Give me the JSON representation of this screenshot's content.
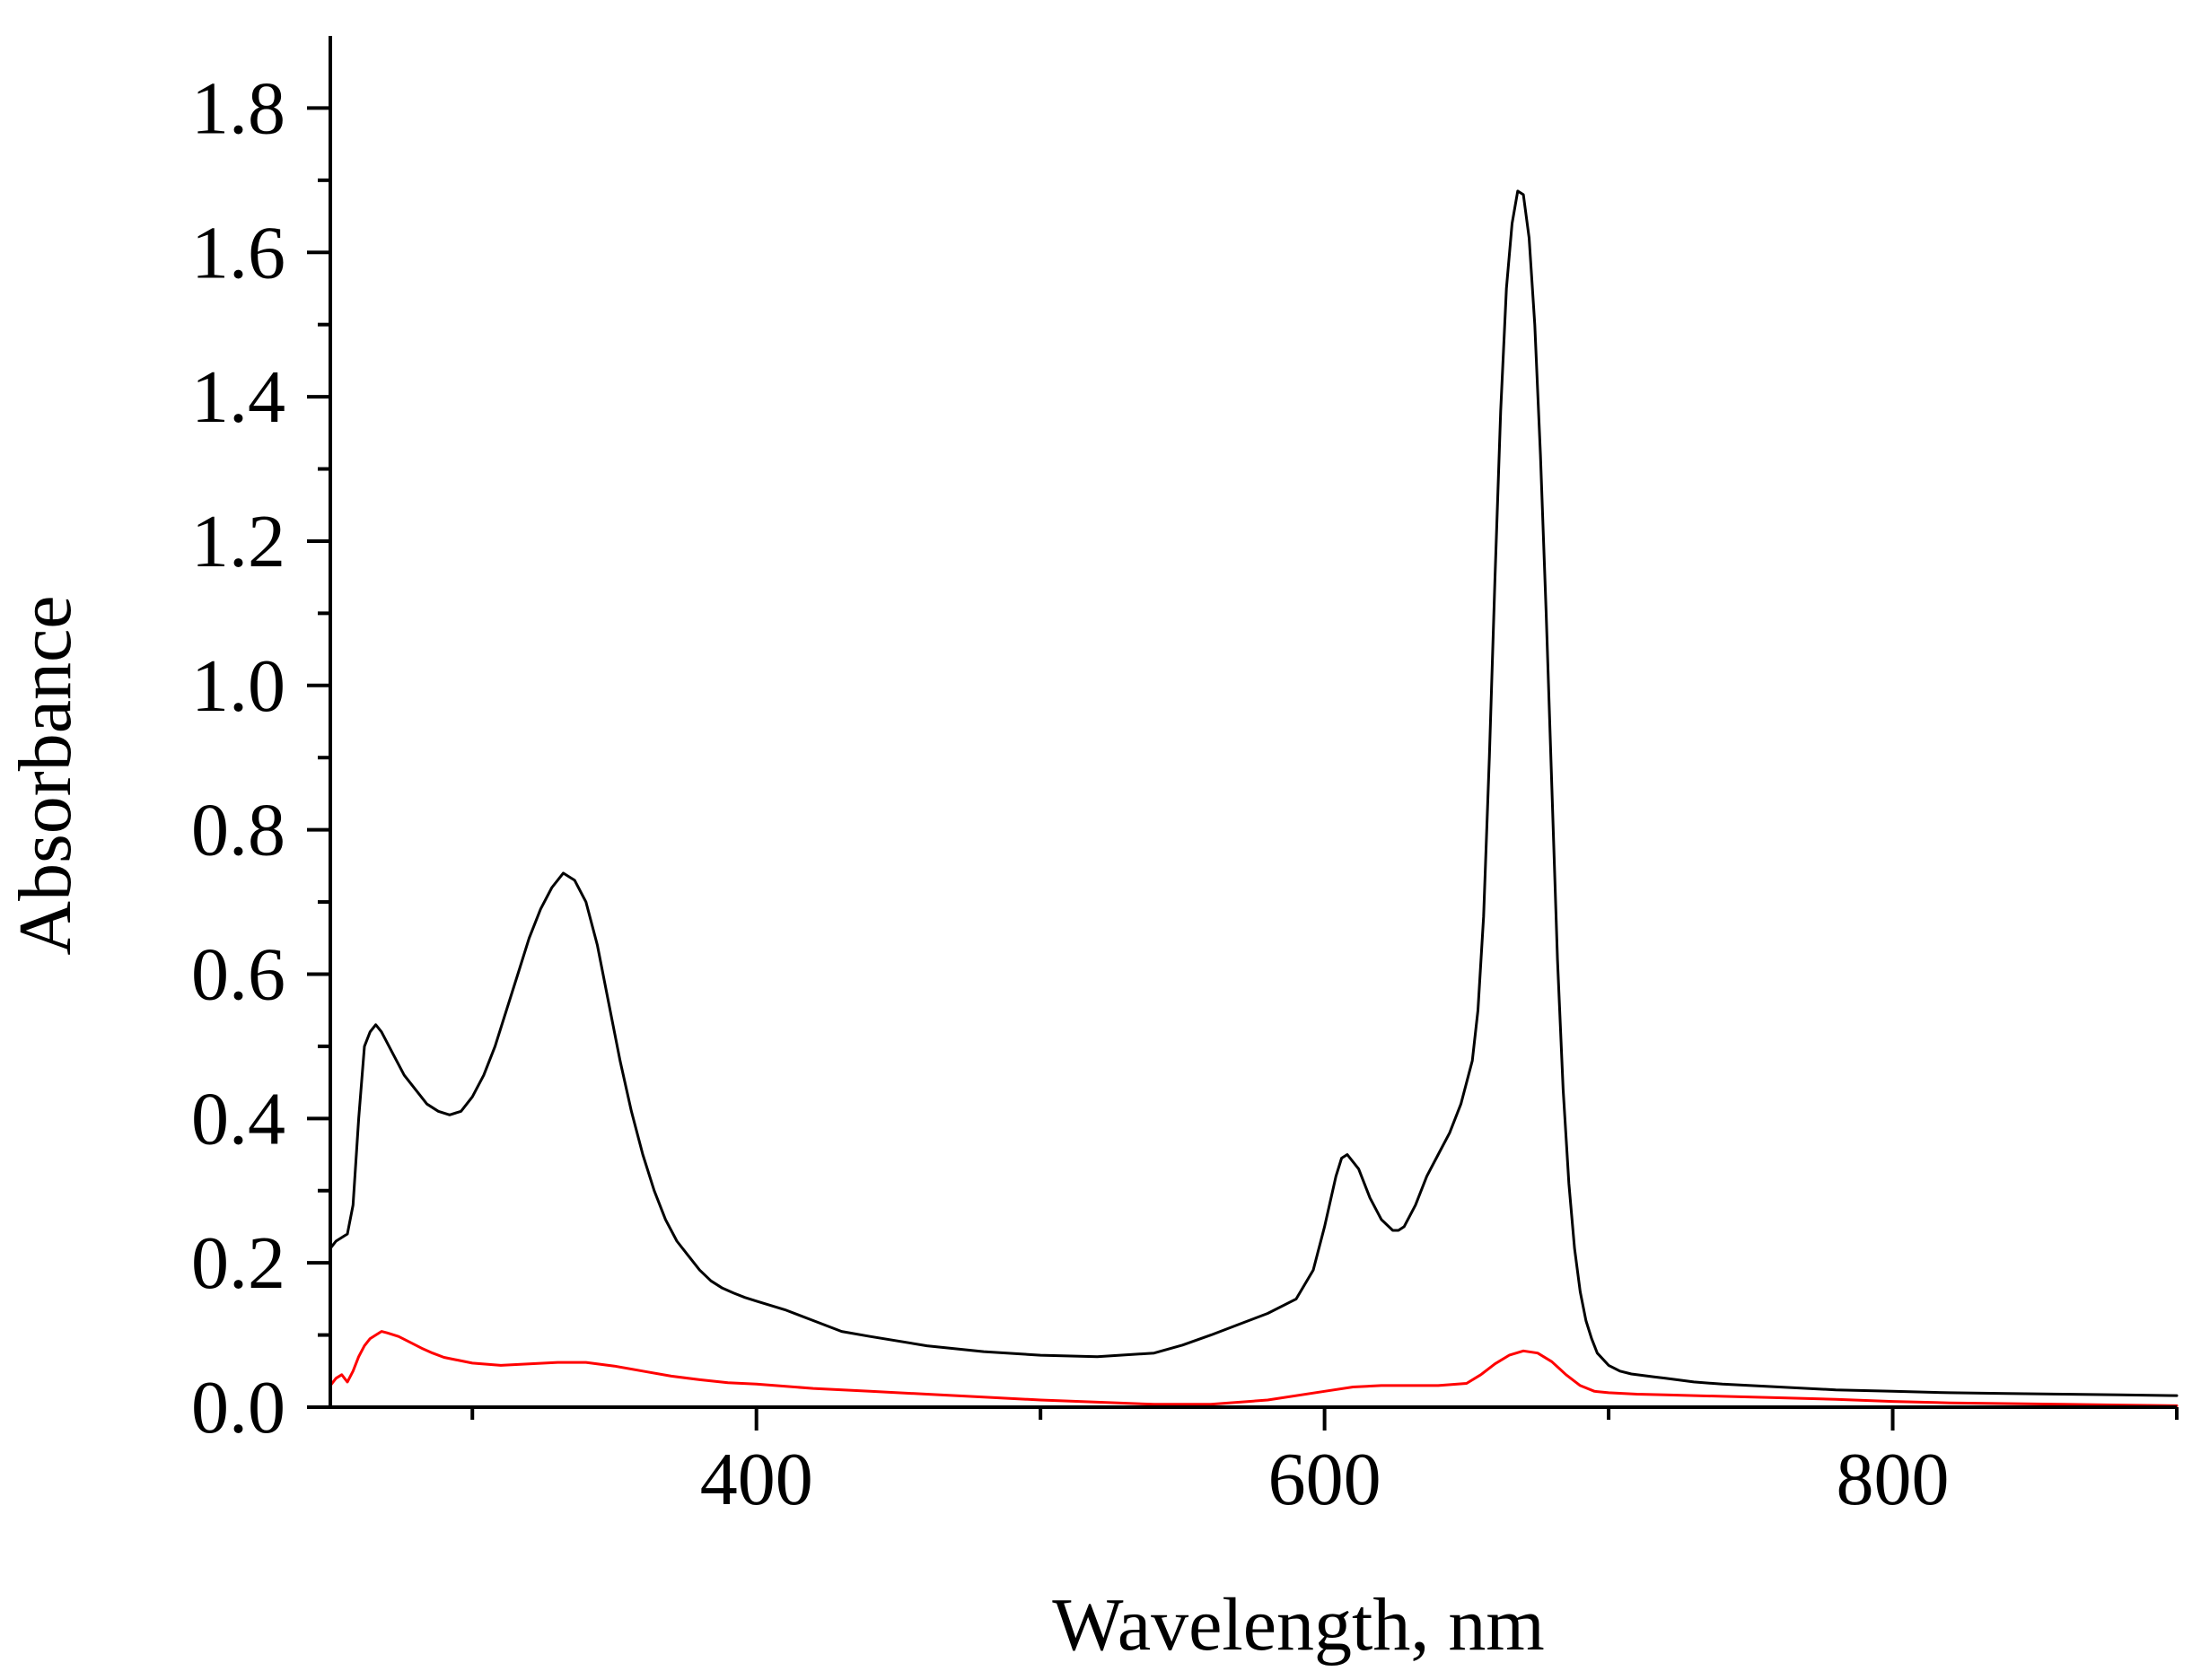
{
  "chart_data": {
    "type": "line",
    "title": "",
    "xlabel": "Wavelength, nm",
    "ylabel": "Absorbance",
    "xlim": [
      250,
      900
    ],
    "ylim": [
      0,
      1.9
    ],
    "x_ticks": [
      {
        "value": 400,
        "label": "400"
      },
      {
        "value": 600,
        "label": "600"
      },
      {
        "value": 800,
        "label": "800"
      }
    ],
    "x_minor_ticks": [
      300,
      500,
      700,
      900
    ],
    "y_ticks": [
      {
        "value": 0.0,
        "label": "0.0"
      },
      {
        "value": 0.2,
        "label": "0.2"
      },
      {
        "value": 0.4,
        "label": "0.4"
      },
      {
        "value": 0.6,
        "label": "0.6"
      },
      {
        "value": 0.8,
        "label": "0.8"
      },
      {
        "value": 1.0,
        "label": "1.0"
      },
      {
        "value": 1.2,
        "label": "1.2"
      },
      {
        "value": 1.4,
        "label": "1.4"
      },
      {
        "value": 1.6,
        "label": "1.6"
      },
      {
        "value": 1.8,
        "label": "1.8"
      }
    ],
    "y_minor_ticks": [
      0.1,
      0.3,
      0.5,
      0.7,
      0.9,
      1.1,
      1.3,
      1.5,
      1.7
    ],
    "grid": false,
    "legend": "none",
    "series": [
      {
        "color": "#000000",
        "x": [
          248,
          252,
          256,
          258,
          260,
          262,
          264,
          266,
          268,
          272,
          276,
          280,
          284,
          288,
          292,
          296,
          300,
          304,
          308,
          312,
          316,
          320,
          324,
          328,
          332,
          336,
          340,
          344,
          348,
          352,
          356,
          360,
          364,
          368,
          372,
          376,
          380,
          384,
          388,
          392,
          396,
          400,
          410,
          420,
          430,
          440,
          460,
          480,
          500,
          520,
          540,
          550,
          560,
          570,
          580,
          590,
          596,
          600,
          604,
          606,
          608,
          612,
          616,
          620,
          624,
          626,
          628,
          632,
          636,
          640,
          644,
          648,
          652,
          654,
          656,
          658,
          660,
          662,
          664,
          666,
          668,
          670,
          672,
          674,
          676,
          678,
          680,
          682,
          684,
          686,
          688,
          690,
          692,
          694,
          696,
          700,
          704,
          708,
          712,
          716,
          720,
          730,
          740,
          760,
          780,
          800,
          820,
          840,
          860,
          880,
          900
        ],
        "y": [
          0.22,
          0.23,
          0.24,
          0.28,
          0.4,
          0.5,
          0.52,
          0.53,
          0.52,
          0.49,
          0.46,
          0.44,
          0.42,
          0.41,
          0.405,
          0.41,
          0.43,
          0.46,
          0.5,
          0.55,
          0.6,
          0.65,
          0.69,
          0.72,
          0.74,
          0.73,
          0.7,
          0.64,
          0.56,
          0.48,
          0.41,
          0.35,
          0.3,
          0.26,
          0.23,
          0.21,
          0.19,
          0.175,
          0.165,
          0.158,
          0.152,
          0.147,
          0.135,
          0.12,
          0.105,
          0.098,
          0.085,
          0.077,
          0.072,
          0.07,
          0.075,
          0.086,
          0.1,
          0.115,
          0.13,
          0.15,
          0.19,
          0.25,
          0.32,
          0.345,
          0.35,
          0.33,
          0.29,
          0.26,
          0.245,
          0.245,
          0.25,
          0.28,
          0.32,
          0.35,
          0.38,
          0.42,
          0.48,
          0.55,
          0.68,
          0.9,
          1.15,
          1.38,
          1.55,
          1.64,
          1.685,
          1.68,
          1.62,
          1.5,
          1.32,
          1.1,
          0.86,
          0.62,
          0.44,
          0.31,
          0.22,
          0.16,
          0.12,
          0.095,
          0.075,
          0.058,
          0.05,
          0.046,
          0.044,
          0.042,
          0.04,
          0.035,
          0.032,
          0.028,
          0.024,
          0.022,
          0.02,
          0.019,
          0.018,
          0.017,
          0.016
        ]
      },
      {
        "color": "#ff0000",
        "x": [
          248,
          250,
          252,
          254,
          256,
          258,
          260,
          262,
          264,
          266,
          268,
          270,
          274,
          278,
          282,
          286,
          290,
          300,
          310,
          320,
          330,
          340,
          350,
          360,
          370,
          380,
          390,
          400,
          420,
          440,
          460,
          480,
          500,
          520,
          540,
          560,
          580,
          600,
          610,
          620,
          640,
          650,
          655,
          660,
          665,
          670,
          675,
          680,
          685,
          690,
          695,
          700,
          710,
          720,
          740,
          760,
          780,
          800,
          820,
          840,
          860,
          880,
          900
        ],
        "y": [
          0.005,
          0.03,
          0.04,
          0.045,
          0.035,
          0.05,
          0.07,
          0.085,
          0.095,
          0.1,
          0.105,
          0.103,
          0.098,
          0.09,
          0.082,
          0.075,
          0.069,
          0.061,
          0.058,
          0.06,
          0.062,
          0.062,
          0.057,
          0.05,
          0.043,
          0.038,
          0.034,
          0.032,
          0.026,
          0.022,
          0.018,
          0.014,
          0.01,
          0.007,
          0.004,
          0.004,
          0.01,
          0.022,
          0.028,
          0.03,
          0.03,
          0.033,
          0.045,
          0.06,
          0.072,
          0.078,
          0.075,
          0.063,
          0.045,
          0.03,
          0.022,
          0.02,
          0.018,
          0.017,
          0.015,
          0.013,
          0.011,
          0.008,
          0.006,
          0.005,
          0.004,
          0.003,
          0.002
        ]
      }
    ]
  }
}
